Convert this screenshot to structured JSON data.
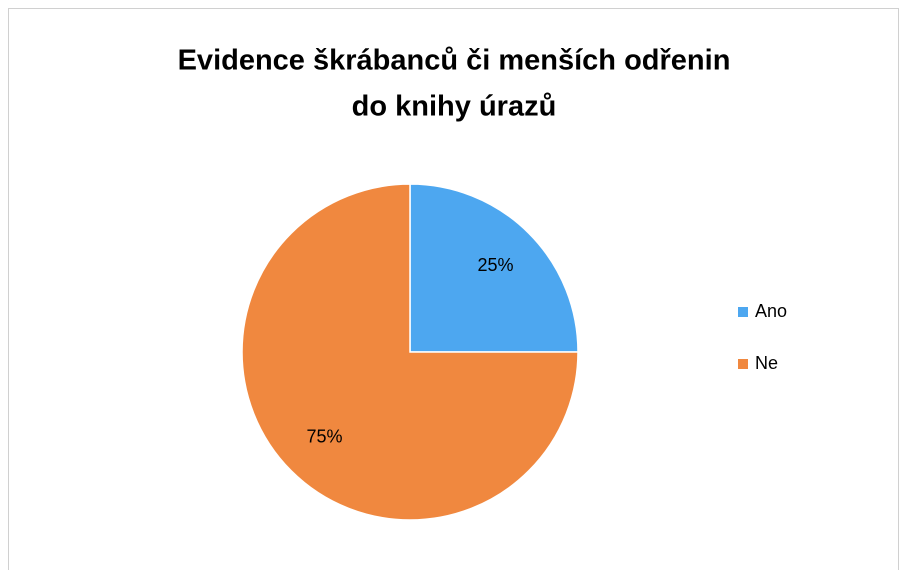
{
  "chart_data": {
    "type": "pie",
    "title": [
      "Evidence škrábanců či menších odřenin",
      "do knihy úrazů"
    ],
    "categories": [
      "Ano",
      "Ne"
    ],
    "values": [
      25,
      75
    ],
    "value_labels": [
      "25%",
      "75%"
    ],
    "colors": [
      "#4da7f0",
      "#f0883f"
    ],
    "legend": "right"
  }
}
